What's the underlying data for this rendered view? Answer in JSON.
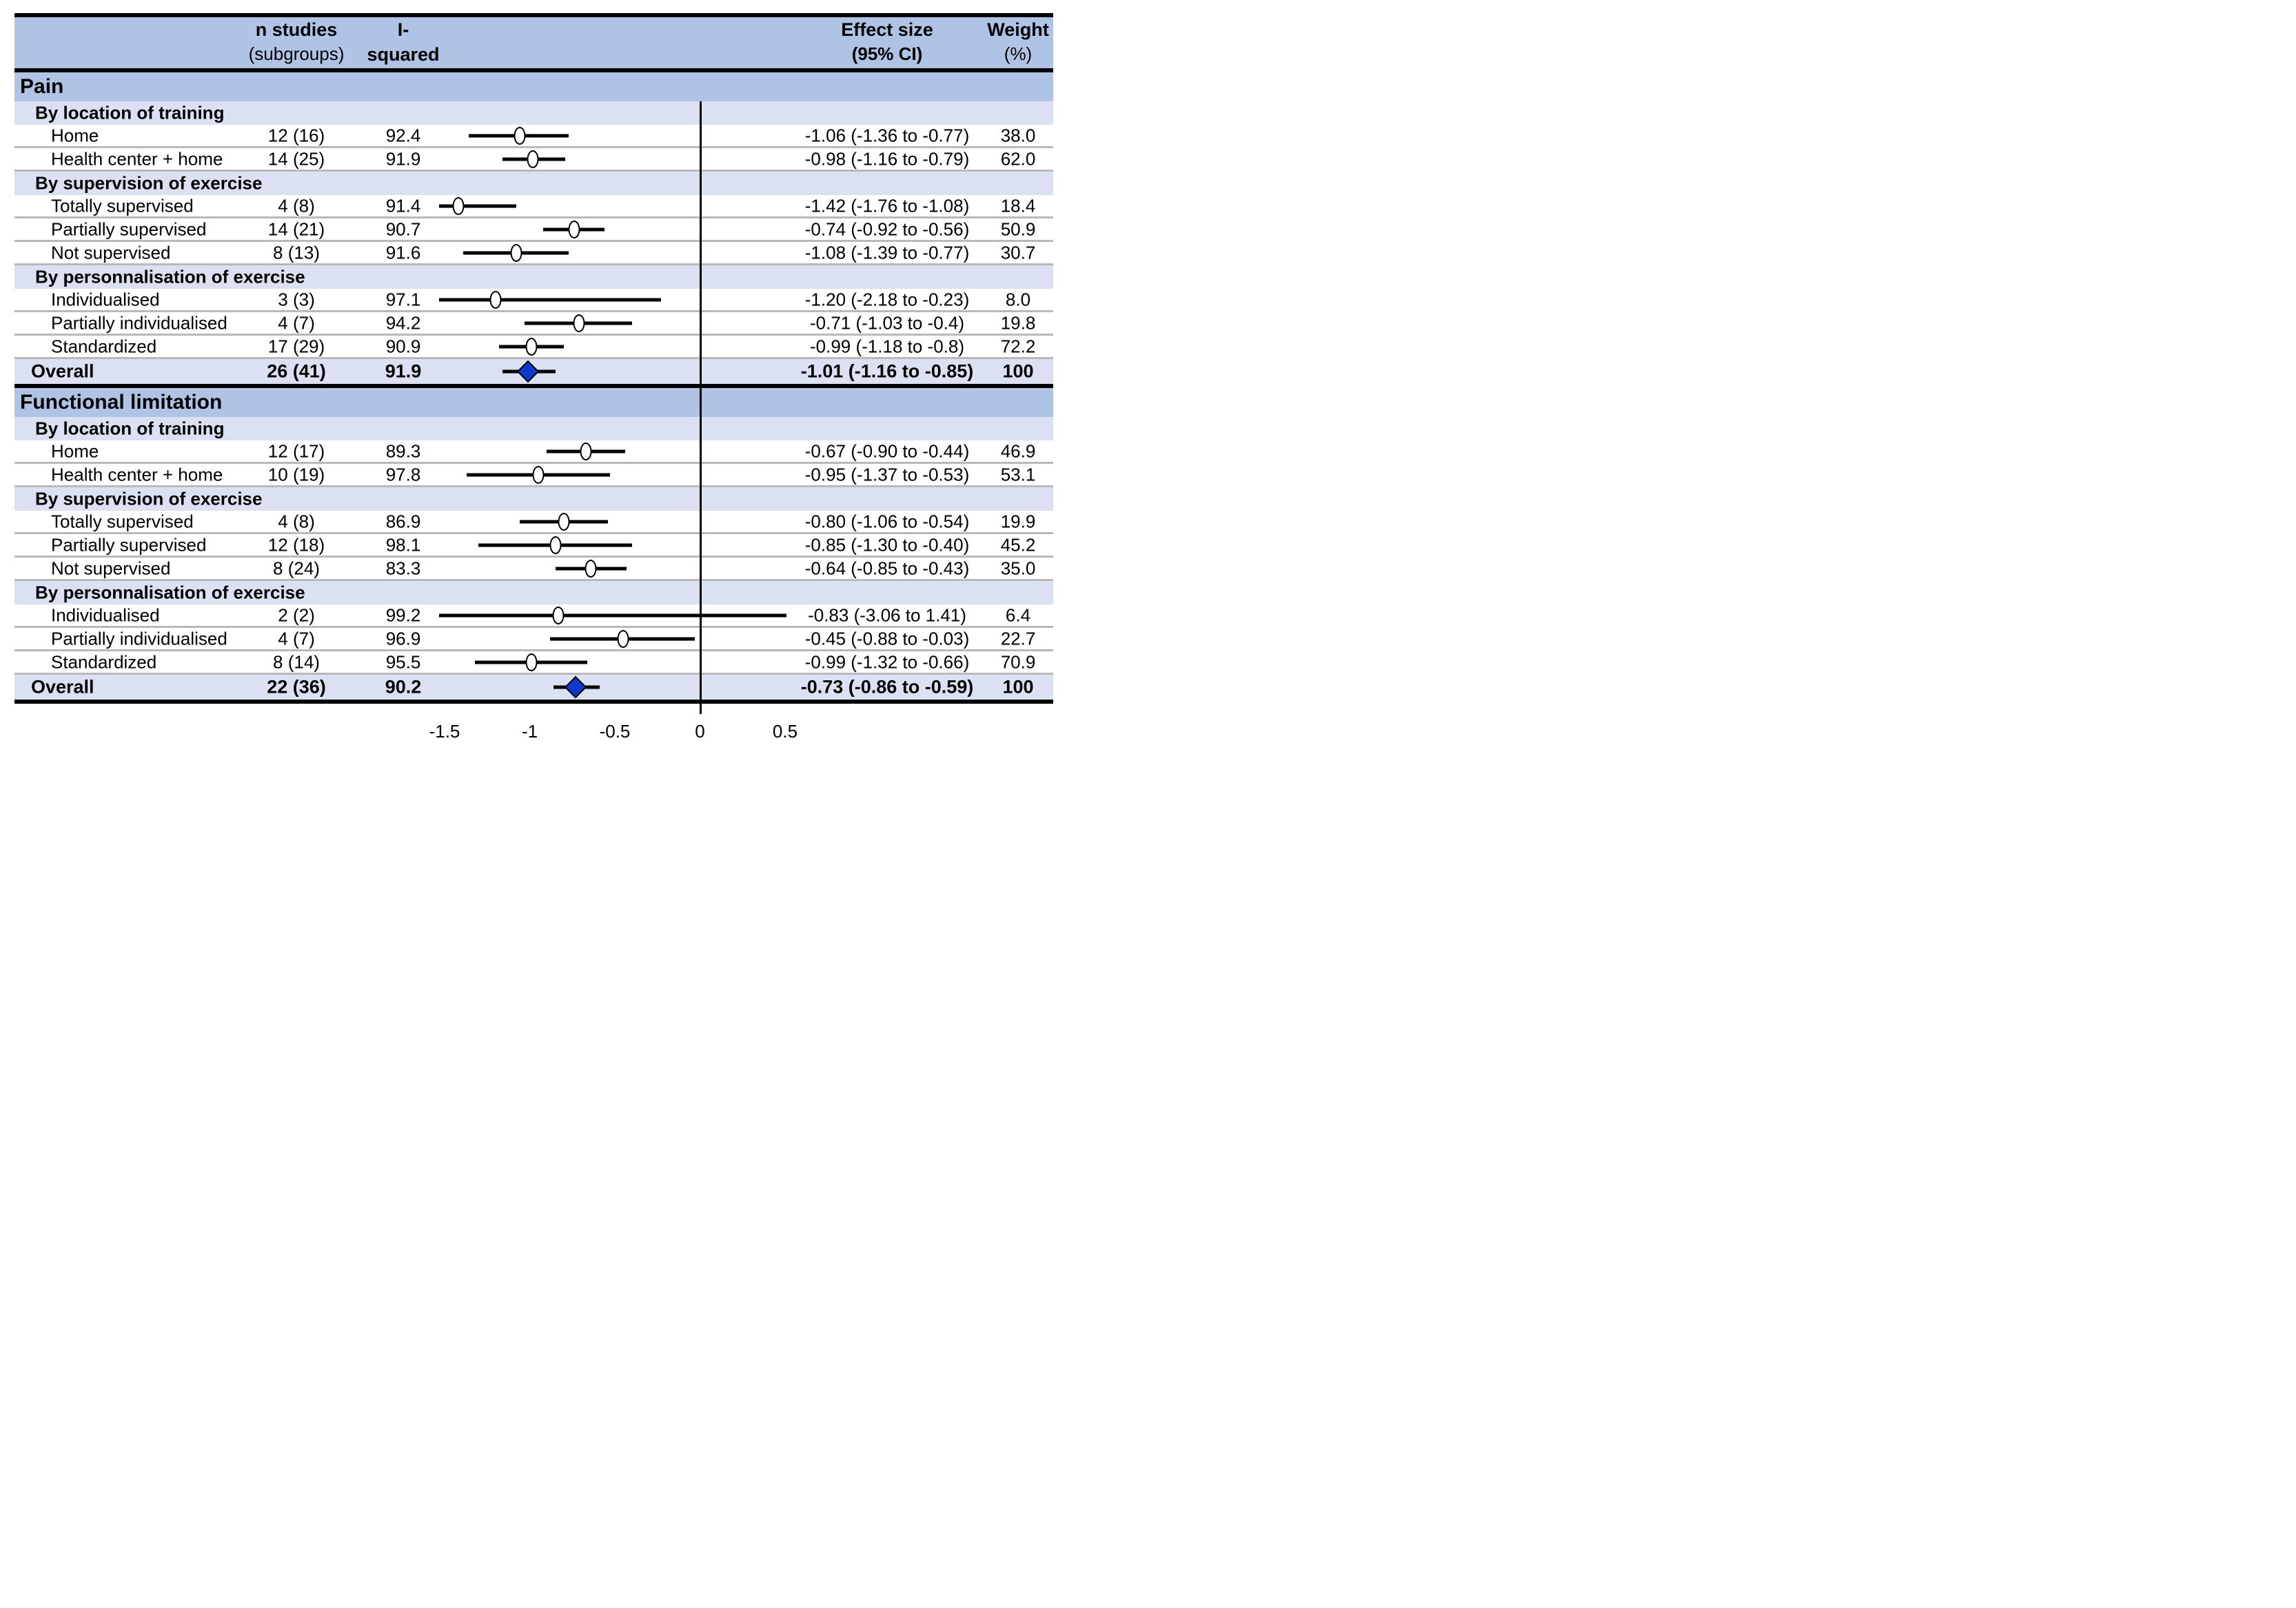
{
  "figure": {
    "header": {
      "col_n_line1": "n studies",
      "col_n_line2": "(subgroups)",
      "col_i2_line1": "I-squared",
      "col_i2_line2": "(%)",
      "col_effect_line1": "Effect size",
      "col_effect_line2": "(95% CI)",
      "col_weight_line1": "Weight",
      "col_weight_line2": "(%)"
    },
    "colors": {
      "section_band": "#afc3e4",
      "subsection_band": "#dbe1f3",
      "overall_band": "#dbe1f3",
      "diamond": "#0d3acc",
      "row_separator": "#b9b9b9",
      "zero_line": "#000000"
    }
  },
  "chart_data": {
    "type": "forest",
    "x_axis": {
      "tick_values": [
        -1.5,
        -1,
        -0.5,
        0,
        0.5
      ],
      "tick_labels": [
        "-1.5",
        "-1",
        "-0.5",
        "0",
        "0.5"
      ],
      "zero_reference": 0,
      "clip_range": [
        -1.53,
        0.51
      ]
    },
    "sections": [
      {
        "title": "Pain",
        "groups": [
          {
            "title": "By location of training",
            "rows": [
              {
                "label": "Home",
                "n_studies": "12 (16)",
                "i_squared": "92.4",
                "effect": -1.06,
                "ci_low": -1.36,
                "ci_high": -0.77,
                "effect_text": "-1.06 (-1.36 to -0.77)",
                "weight": "38.0"
              },
              {
                "label": "Health center + home",
                "n_studies": "14 (25)",
                "i_squared": "91.9",
                "effect": -0.98,
                "ci_low": -1.16,
                "ci_high": -0.79,
                "effect_text": "-0.98 (-1.16 to -0.79)",
                "weight": "62.0"
              }
            ]
          },
          {
            "title": "By supervision of exercise",
            "rows": [
              {
                "label": "Totally supervised",
                "n_studies": "4 (8)",
                "i_squared": "91.4",
                "effect": -1.42,
                "ci_low": -1.76,
                "ci_high": -1.08,
                "effect_text": "-1.42 (-1.76 to -1.08)",
                "weight": "18.4"
              },
              {
                "label": "Partially supervised",
                "n_studies": "14 (21)",
                "i_squared": "90.7",
                "effect": -0.74,
                "ci_low": -0.92,
                "ci_high": -0.56,
                "effect_text": "-0.74 (-0.92 to -0.56)",
                "weight": "50.9"
              },
              {
                "label": "Not supervised",
                "n_studies": "8 (13)",
                "i_squared": "91.6",
                "effect": -1.08,
                "ci_low": -1.39,
                "ci_high": -0.77,
                "effect_text": "-1.08 (-1.39 to -0.77)",
                "weight": "30.7"
              }
            ]
          },
          {
            "title": "By personnalisation of exercise",
            "rows": [
              {
                "label": "Individualised",
                "n_studies": "3 (3)",
                "i_squared": "97.1",
                "effect": -1.2,
                "ci_low": -2.18,
                "ci_high": -0.23,
                "effect_text": "-1.20 (-2.18 to -0.23)",
                "weight": "8.0"
              },
              {
                "label": "Partially individualised",
                "n_studies": "4 (7)",
                "i_squared": "94.2",
                "effect": -0.71,
                "ci_low": -1.03,
                "ci_high": -0.4,
                "effect_text": "-0.71 (-1.03 to -0.4)",
                "weight": "19.8"
              },
              {
                "label": "Standardized",
                "n_studies": "17 (29)",
                "i_squared": "90.9",
                "effect": -0.99,
                "ci_low": -1.18,
                "ci_high": -0.8,
                "effect_text": "-0.99 (-1.18 to -0.8)",
                "weight": "72.2"
              }
            ]
          }
        ],
        "overall": {
          "label": "Overall",
          "n_studies": "26 (41)",
          "i_squared": "91.9",
          "effect": -1.01,
          "ci_low": -1.16,
          "ci_high": -0.85,
          "effect_text": "-1.01 (-1.16 to -0.85)",
          "weight": "100"
        }
      },
      {
        "title": "Functional limitation",
        "groups": [
          {
            "title": "By location of training",
            "rows": [
              {
                "label": "Home",
                "n_studies": "12 (17)",
                "i_squared": "89.3",
                "effect": -0.67,
                "ci_low": -0.9,
                "ci_high": -0.44,
                "effect_text": "-0.67 (-0.90 to -0.44)",
                "weight": "46.9"
              },
              {
                "label": "Health center + home",
                "n_studies": "10 (19)",
                "i_squared": "97.8",
                "effect": -0.95,
                "ci_low": -1.37,
                "ci_high": -0.53,
                "effect_text": "-0.95 (-1.37 to -0.53)",
                "weight": "53.1"
              }
            ]
          },
          {
            "title": "By supervision of exercise",
            "rows": [
              {
                "label": "Totally supervised",
                "n_studies": "4 (8)",
                "i_squared": "86.9",
                "effect": -0.8,
                "ci_low": -1.06,
                "ci_high": -0.54,
                "effect_text": "-0.80 (-1.06 to -0.54)",
                "weight": "19.9"
              },
              {
                "label": "Partially supervised",
                "n_studies": "12 (18)",
                "i_squared": "98.1",
                "effect": -0.85,
                "ci_low": -1.3,
                "ci_high": -0.4,
                "effect_text": "-0.85 (-1.30 to -0.40)",
                "weight": "45.2"
              },
              {
                "label": "Not supervised",
                "n_studies": "8 (24)",
                "i_squared": "83.3",
                "effect": -0.64,
                "ci_low": -0.85,
                "ci_high": -0.43,
                "effect_text": "-0.64 (-0.85 to -0.43)",
                "weight": "35.0"
              }
            ]
          },
          {
            "title": "By personnalisation of exercise",
            "rows": [
              {
                "label": "Individualised",
                "n_studies": "2 (2)",
                "i_squared": "99.2",
                "effect": -0.83,
                "ci_low": -3.06,
                "ci_high": 1.41,
                "effect_text": "-0.83 (-3.06 to 1.41)",
                "weight": "6.4"
              },
              {
                "label": "Partially individualised",
                "n_studies": "4 (7)",
                "i_squared": "96.9",
                "effect": -0.45,
                "ci_low": -0.88,
                "ci_high": -0.03,
                "effect_text": "-0.45 (-0.88 to -0.03)",
                "weight": "22.7"
              },
              {
                "label": "Standardized",
                "n_studies": "8 (14)",
                "i_squared": "95.5",
                "effect": -0.99,
                "ci_low": -1.32,
                "ci_high": -0.66,
                "effect_text": "-0.99 (-1.32 to -0.66)",
                "weight": "70.9"
              }
            ]
          }
        ],
        "overall": {
          "label": "Overall",
          "n_studies": "22 (36)",
          "i_squared": "90.2",
          "effect": -0.73,
          "ci_low": -0.86,
          "ci_high": -0.59,
          "effect_text": "-0.73 (-0.86 to -0.59)",
          "weight": "100"
        }
      }
    ]
  }
}
